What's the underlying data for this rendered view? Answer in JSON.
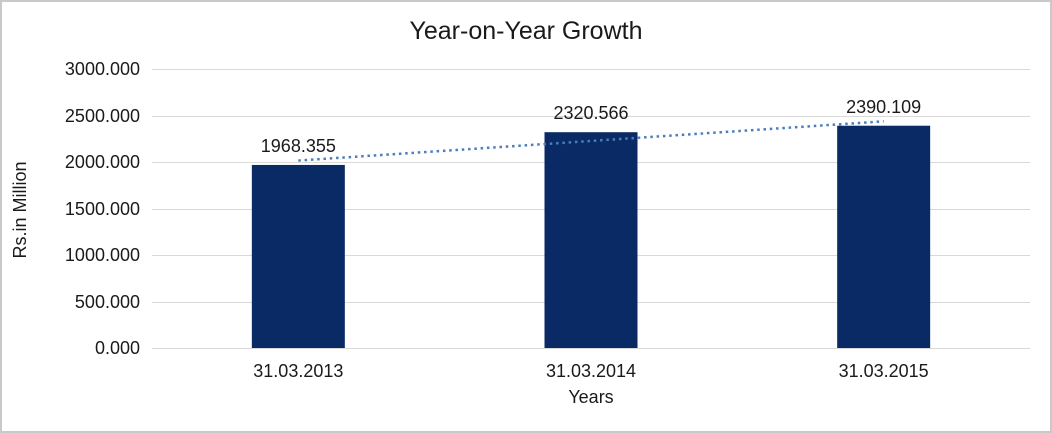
{
  "chart_data": {
    "type": "bar",
    "title": "Year-on-Year Growth",
    "xlabel": "Years",
    "ylabel": "Rs.in Million",
    "categories": [
      "31.03.2013",
      "31.03.2014",
      "31.03.2015"
    ],
    "series": [
      {
        "name": "Rs.in Million",
        "values": [
          1968.355,
          2320.566,
          2390.109
        ]
      }
    ],
    "data_labels": [
      "1968.355",
      "2320.566",
      "2390.109"
    ],
    "ytick_values": [
      0,
      500,
      1000,
      1500,
      2000,
      2500,
      3000
    ],
    "ytick_labels": [
      "0.000",
      "500.000",
      "1000.000",
      "1500.000",
      "2000.000",
      "2500.000",
      "3000.000"
    ],
    "ylim": [
      0,
      3000
    ],
    "grid": "horizontal",
    "legend": "none",
    "trendline": {
      "type": "linear",
      "style": "dotted"
    },
    "colors": {
      "bar": "#0a2a66",
      "trendline": "#4a7ebb",
      "gridline": "#d9d9d9",
      "axis_line": "#d9d9d9",
      "text": "#1a1a1a",
      "frame_border": "#c9c9c9"
    }
  }
}
